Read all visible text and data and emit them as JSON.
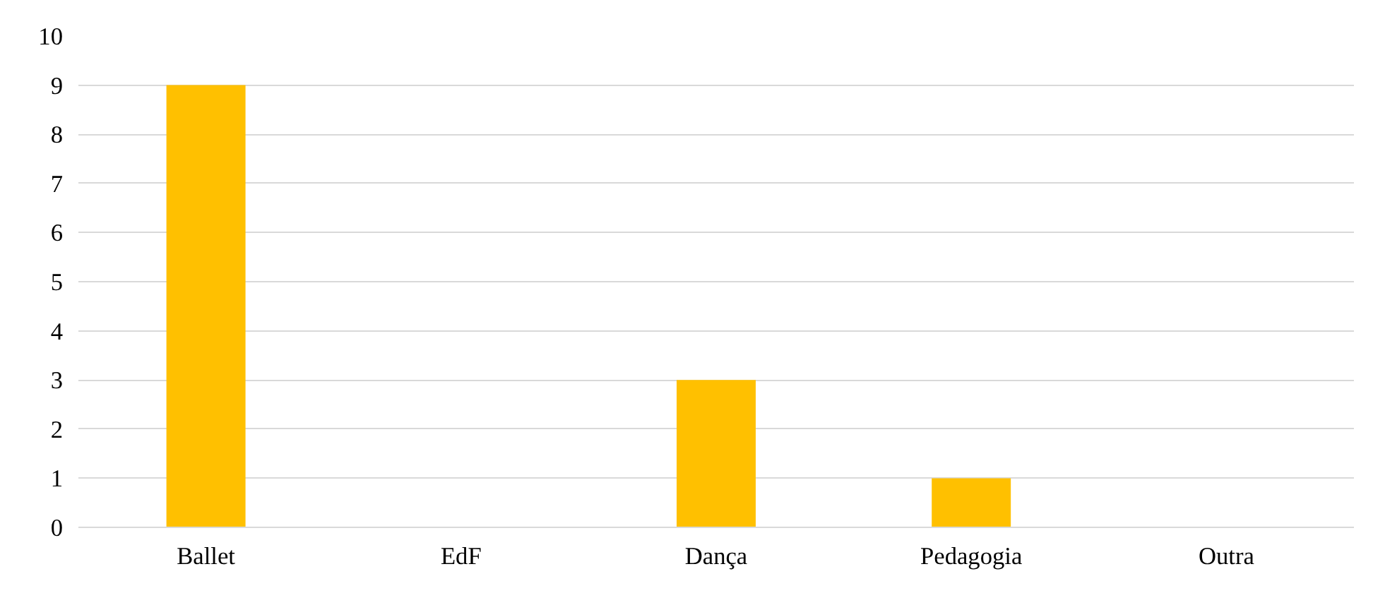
{
  "chart_data": {
    "type": "bar",
    "categories": [
      "Ballet",
      "EdF",
      "Dança",
      "Pedagogia",
      "Outra"
    ],
    "values": [
      9,
      0,
      3,
      1,
      0
    ],
    "color": "#ffc000",
    "ylim": [
      0,
      10
    ],
    "yticks": [
      0,
      1,
      2,
      3,
      4,
      5,
      6,
      7,
      8,
      9,
      10
    ],
    "grid": "y"
  }
}
